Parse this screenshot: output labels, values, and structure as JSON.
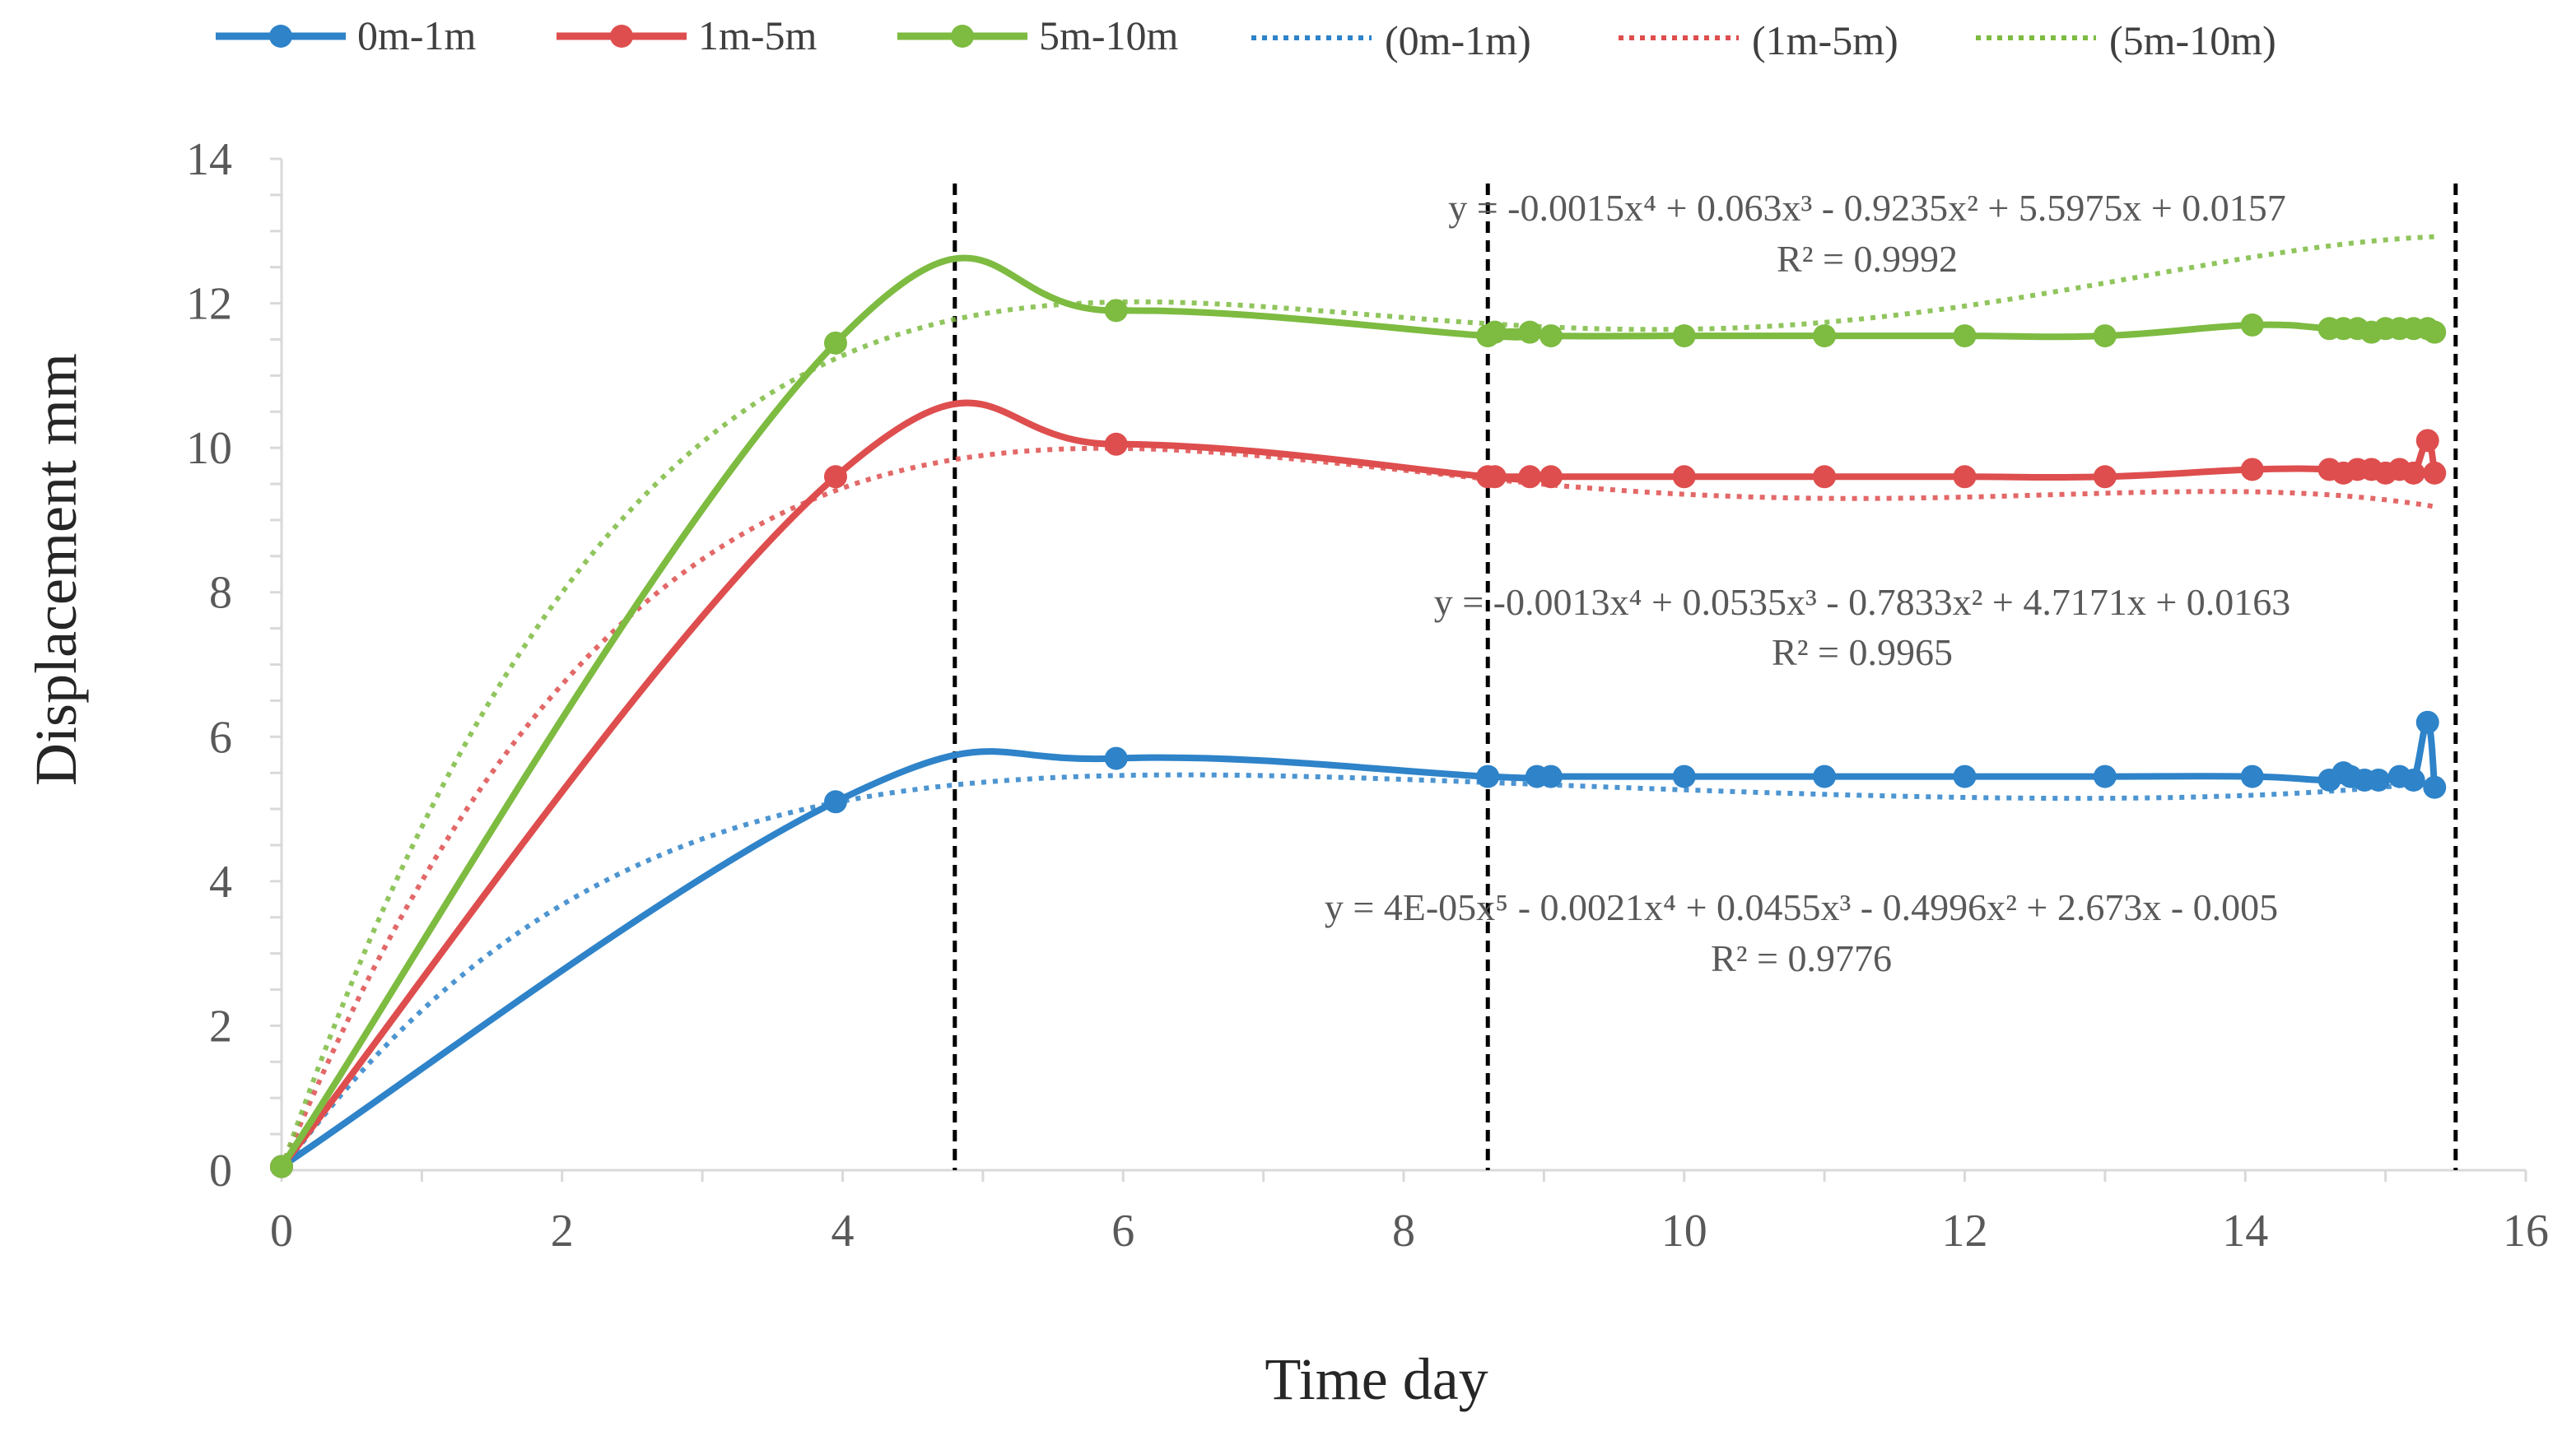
{
  "chart_data": {
    "type": "line",
    "xlabel": "Time day",
    "ylabel": "Displacement mm",
    "xlim": [
      0,
      16
    ],
    "ylim": [
      0,
      14
    ],
    "xticks": [
      0,
      2,
      4,
      6,
      8,
      10,
      12,
      14,
      16
    ],
    "yticks": [
      0,
      2,
      4,
      6,
      8,
      10,
      12,
      14
    ],
    "legend_position": "top",
    "vlines": [
      4.8,
      8.6,
      15.5
    ],
    "series": [
      {
        "name": "0m-1m",
        "color": "#2E83C9",
        "x": [
          0,
          3.95,
          5.95,
          8.6,
          8.95,
          9.05,
          10,
          11,
          12,
          13,
          14.05,
          14.6,
          14.7,
          14.75,
          14.85,
          14.95,
          15.1,
          15.2,
          15.3,
          15.35
        ],
        "y": [
          0.05,
          5.1,
          5.7,
          5.45,
          5.45,
          5.45,
          5.45,
          5.45,
          5.45,
          5.45,
          5.45,
          5.4,
          5.5,
          5.45,
          5.4,
          5.4,
          5.45,
          5.4,
          6.2,
          5.3
        ]
      },
      {
        "name": "1m-5m",
        "color": "#DE4E4E",
        "x": [
          0,
          3.95,
          5.95,
          8.6,
          8.65,
          8.9,
          9.05,
          10,
          11,
          12,
          13,
          14.05,
          14.6,
          14.7,
          14.8,
          14.9,
          15.0,
          15.1,
          15.2,
          15.3,
          15.35
        ],
        "y": [
          0.05,
          9.6,
          10.05,
          9.6,
          9.6,
          9.6,
          9.6,
          9.6,
          9.6,
          9.6,
          9.6,
          9.7,
          9.7,
          9.65,
          9.7,
          9.7,
          9.65,
          9.7,
          9.65,
          10.1,
          9.65
        ]
      },
      {
        "name": "5m-10m",
        "color": "#7DBB41",
        "x": [
          0,
          3.95,
          5.95,
          8.6,
          8.65,
          8.9,
          9.05,
          10,
          11,
          12,
          13,
          14.05,
          14.6,
          14.7,
          14.8,
          14.9,
          15.0,
          15.1,
          15.2,
          15.3,
          15.35
        ],
        "y": [
          0.05,
          11.45,
          11.9,
          11.55,
          11.6,
          11.6,
          11.55,
          11.55,
          11.55,
          11.55,
          11.55,
          11.7,
          11.65,
          11.65,
          11.65,
          11.6,
          11.65,
          11.65,
          11.65,
          11.65,
          11.6
        ]
      }
    ],
    "trendlines": [
      {
        "name": "(0m-1m)",
        "color": "#2E83C9",
        "coefficients_desc": [
          4e-05,
          -0.0021,
          0.0455,
          -0.4996,
          2.673,
          -0.005
        ],
        "equation": "y = 4E-05x⁵ - 0.0021x⁴ + 0.0455x³ - 0.4996x² + 2.673x - 0.005",
        "r2": "R² = 0.9776"
      },
      {
        "name": "(1m-5m)",
        "color": "#DE4E4E",
        "coefficients_desc": [
          -0.0013,
          0.0535,
          -0.7833,
          4.7171,
          0.0163
        ],
        "equation": "y = -0.0013x⁴ + 0.0535x³ - 0.7833x² + 4.7171x + 0.0163",
        "r2": "R² = 0.9965"
      },
      {
        "name": "(5m-10m)",
        "color": "#7DBB41",
        "coefficients_desc": [
          -0.0015,
          0.063,
          -0.9235,
          5.5975,
          0.0157
        ],
        "equation": "y = -0.0015x⁴ + 0.063x³ - 0.9235x² + 5.5975x + 0.0157",
        "r2": "R² = 0.9992"
      }
    ]
  }
}
